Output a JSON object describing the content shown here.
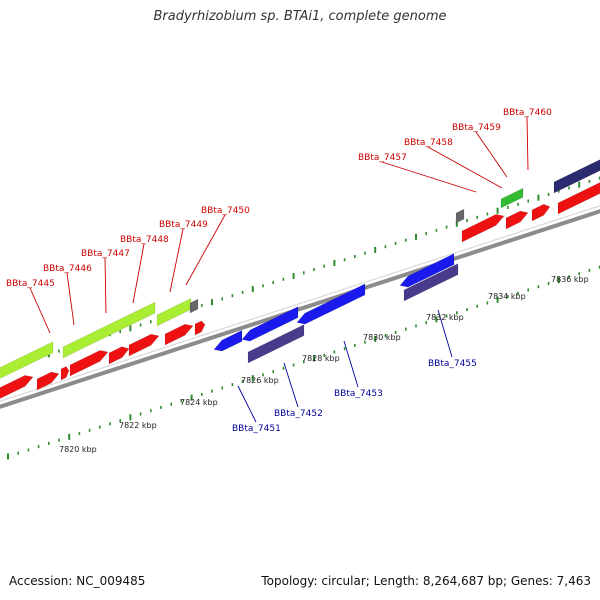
{
  "title": "Bradyrhizobium sp. BTAi1, complete genome",
  "footer": {
    "accession": "Accession: NC_009485",
    "summary": "Topology: circular; Length: 8,264,687 bp; Genes: 7,463"
  },
  "colors": {
    "forward_label": "#cc0000",
    "reverse_label": "#000099",
    "backbone": "#8c8c8c",
    "tick": "#2e8b2e"
  },
  "ticks": [
    {
      "label": "7820 kbp"
    },
    {
      "label": "7822 kbp"
    },
    {
      "label": "7824 kbp"
    },
    {
      "label": "7826 kbp"
    },
    {
      "label": "7828 kbp"
    },
    {
      "label": "7830 kbp"
    },
    {
      "label": "7832 kbp"
    },
    {
      "label": "7834 kbp"
    },
    {
      "label": "7836 kbp"
    }
  ],
  "forward_genes": [
    {
      "label": "BBta_7445"
    },
    {
      "label": "BBta_7446"
    },
    {
      "label": "BBta_7447"
    },
    {
      "label": "BBta_7448"
    },
    {
      "label": "BBta_7449"
    },
    {
      "label": "BBta_7450"
    },
    {
      "label": "BBta_7457"
    },
    {
      "label": "BBta_7458"
    },
    {
      "label": "BBta_7459"
    },
    {
      "label": "BBta_7460"
    }
  ],
  "reverse_genes": [
    {
      "label": "BBta_7451"
    },
    {
      "label": "BBta_7452"
    },
    {
      "label": "BBta_7453"
    },
    {
      "label": "BBta_7455"
    }
  ]
}
